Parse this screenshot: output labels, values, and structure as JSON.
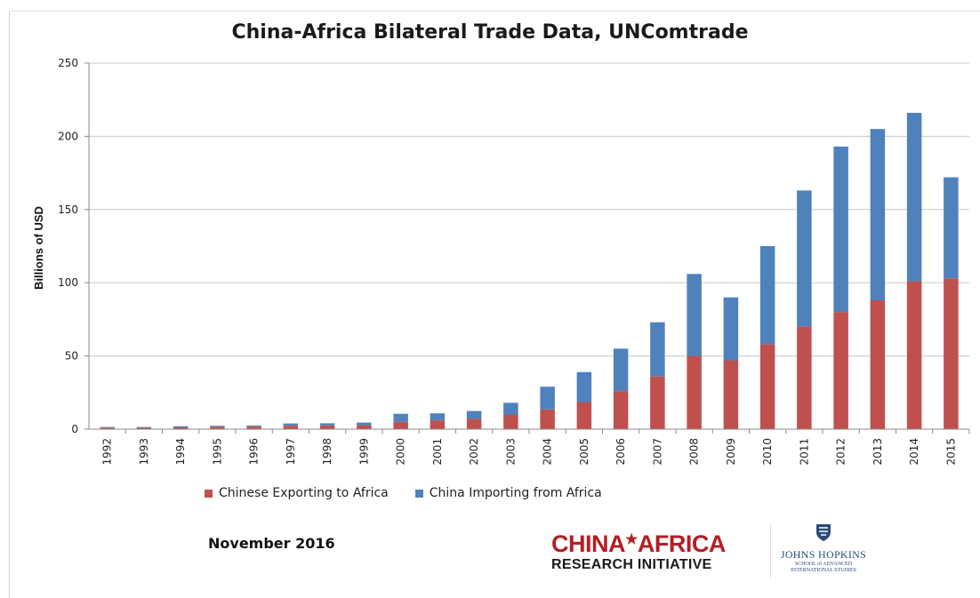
{
  "chart_data": {
    "type": "bar",
    "stacked": true,
    "title": "China-Africa Bilateral Trade Data, UNComtrade",
    "ylabel": "Billions of USD",
    "xlabel": "",
    "ylim": [
      0,
      250
    ],
    "yticks": [
      0,
      50,
      100,
      150,
      200,
      250
    ],
    "grid": true,
    "legend_position": "bottom",
    "categories": [
      "1992",
      "1993",
      "1994",
      "1995",
      "1996",
      "1997",
      "1998",
      "1999",
      "2000",
      "2001",
      "2002",
      "2003",
      "2004",
      "2005",
      "2006",
      "2007",
      "2008",
      "2009",
      "2010",
      "2011",
      "2012",
      "2013",
      "2014",
      "2015"
    ],
    "series": [
      {
        "name": "Chinese Exporting to Africa",
        "color": "#c0504d",
        "values": [
          1.0,
          1.0,
          1.2,
          1.6,
          1.7,
          2.3,
          2.6,
          2.8,
          5.0,
          6.0,
          7.0,
          10.0,
          13.5,
          18.5,
          26.0,
          36.0,
          50.0,
          47.0,
          58.0,
          70.0,
          80.0,
          88.0,
          101.0,
          103.0
        ]
      },
      {
        "name": "China Importing from Africa",
        "color": "#4f81bd",
        "values": [
          0.5,
          0.5,
          0.8,
          0.7,
          0.8,
          1.6,
          1.4,
          1.7,
          5.5,
          4.8,
          5.4,
          8.0,
          15.5,
          20.5,
          29.0,
          37.0,
          56.0,
          43.0,
          67.0,
          93.0,
          113.0,
          117.0,
          115.0,
          69.0
        ]
      }
    ]
  },
  "footer": {
    "date": "November 2016",
    "logo_line1_a": "CHINA",
    "logo_star": "★",
    "logo_line1_b": "AFRICA",
    "logo_line2": "RESEARCH INITIATIVE",
    "jhu_name": "JOHNS HOPKINS",
    "jhu_sub1": "SCHOOL of ADVANCED",
    "jhu_sub2": "INTERNATIONAL STUDIES"
  }
}
